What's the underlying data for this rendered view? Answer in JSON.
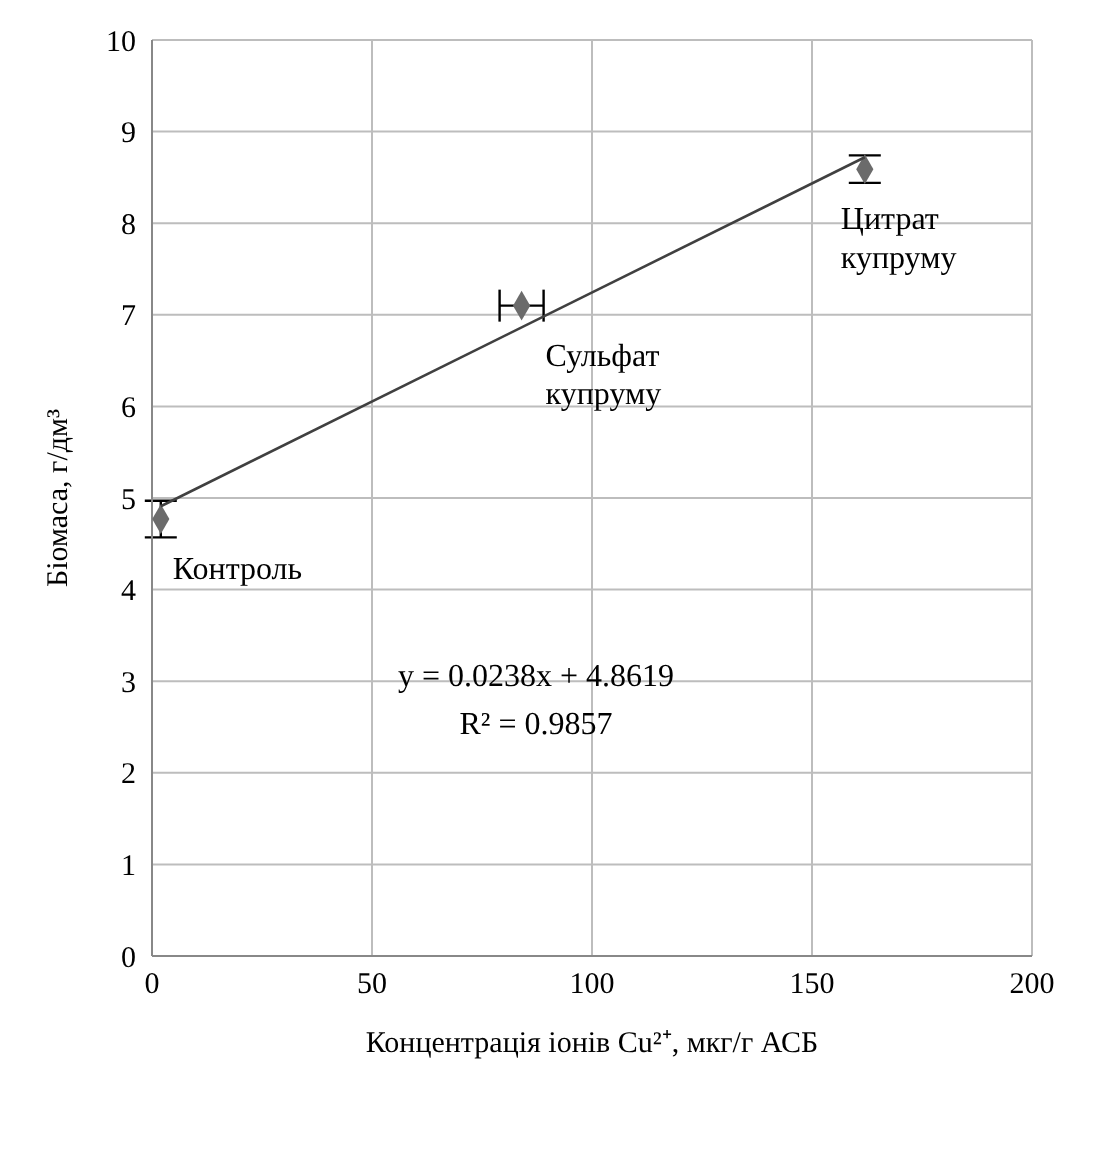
{
  "chart_data": {
    "type": "scatter",
    "xlabel": "Концентрація іонів Cu²⁺, мкг/г АСБ",
    "ylabel": "Біомаса, г/дм³",
    "xlim": [
      0,
      200
    ],
    "xticks": [
      0,
      50,
      100,
      150,
      200
    ],
    "ylim": [
      0,
      10
    ],
    "yticks": [
      0,
      1,
      2,
      3,
      4,
      5,
      6,
      7,
      8,
      9,
      10
    ],
    "grid": true,
    "line_style": "solid",
    "series": [
      {
        "marker": "diamond",
        "color": "#6b6b6b",
        "x": [
          2,
          84,
          162
        ],
        "values": [
          4.77,
          7.1,
          8.59
        ],
        "errors": [
          0.2,
          null,
          0.15
        ],
        "xerrors": [
          null,
          5,
          null
        ]
      },
      {
        "type": "line",
        "marker": "none",
        "color": "#404040",
        "x": [
          2,
          162
        ],
        "values": [
          4.91,
          8.72
        ]
      }
    ],
    "annotations": [
      {
        "text": "Контроль",
        "x": 2,
        "y": 4.77
      },
      {
        "text": "Сульфат\nкупруму",
        "x": 84,
        "y": 7.1
      },
      {
        "text": "Цитрат\nкупруму",
        "x": 162,
        "y": 8.59
      },
      "y = 0.0238x + 4.8619",
      "R² = 0.9857"
    ]
  }
}
